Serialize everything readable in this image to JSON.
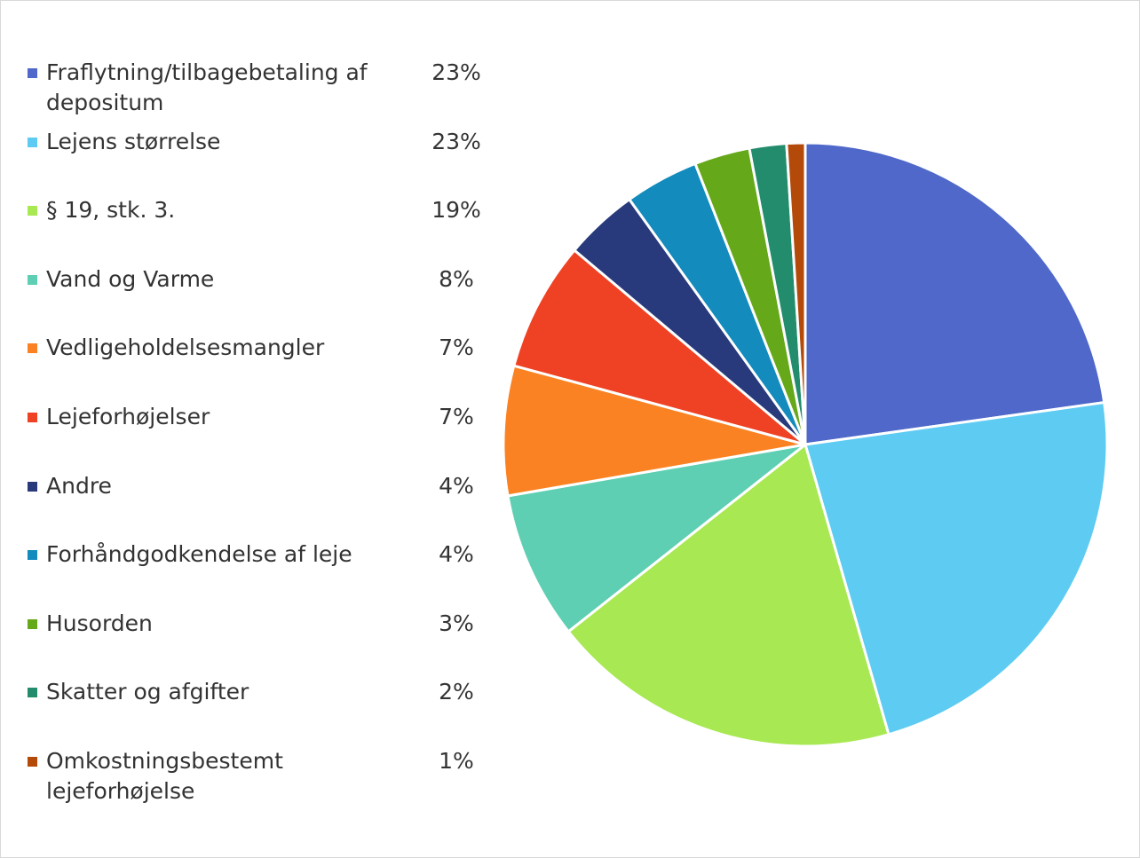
{
  "chart_data": {
    "type": "pie",
    "categories": [
      "Fraflytning/tilbagebetaling af depositum",
      "Lejens størrelse",
      "§ 19, stk. 3.",
      "Vand og Varme",
      "Vedligeholdelsesmangler",
      "Lejeforhøjelser",
      "Andre",
      "Forhåndgodkendelse af leje",
      "Husorden",
      "Skatter og afgifter",
      "Omkostningsbestemt lejeforhøjelse"
    ],
    "values": [
      23,
      23,
      19,
      8,
      7,
      7,
      4,
      4,
      3,
      2,
      1
    ],
    "value_labels": [
      "23%",
      "23%",
      "19%",
      "8%",
      "7%",
      "7%",
      "4%",
      "4%",
      "3%",
      "2%",
      "1%"
    ],
    "colors": [
      "#4f68c9",
      "#5ecbf2",
      "#a8e852",
      "#5ecfb2",
      "#fb8222",
      "#ef4123",
      "#283a7b",
      "#138bbd",
      "#65a819",
      "#228c6c",
      "#b34a09"
    ],
    "legend": "left"
  }
}
